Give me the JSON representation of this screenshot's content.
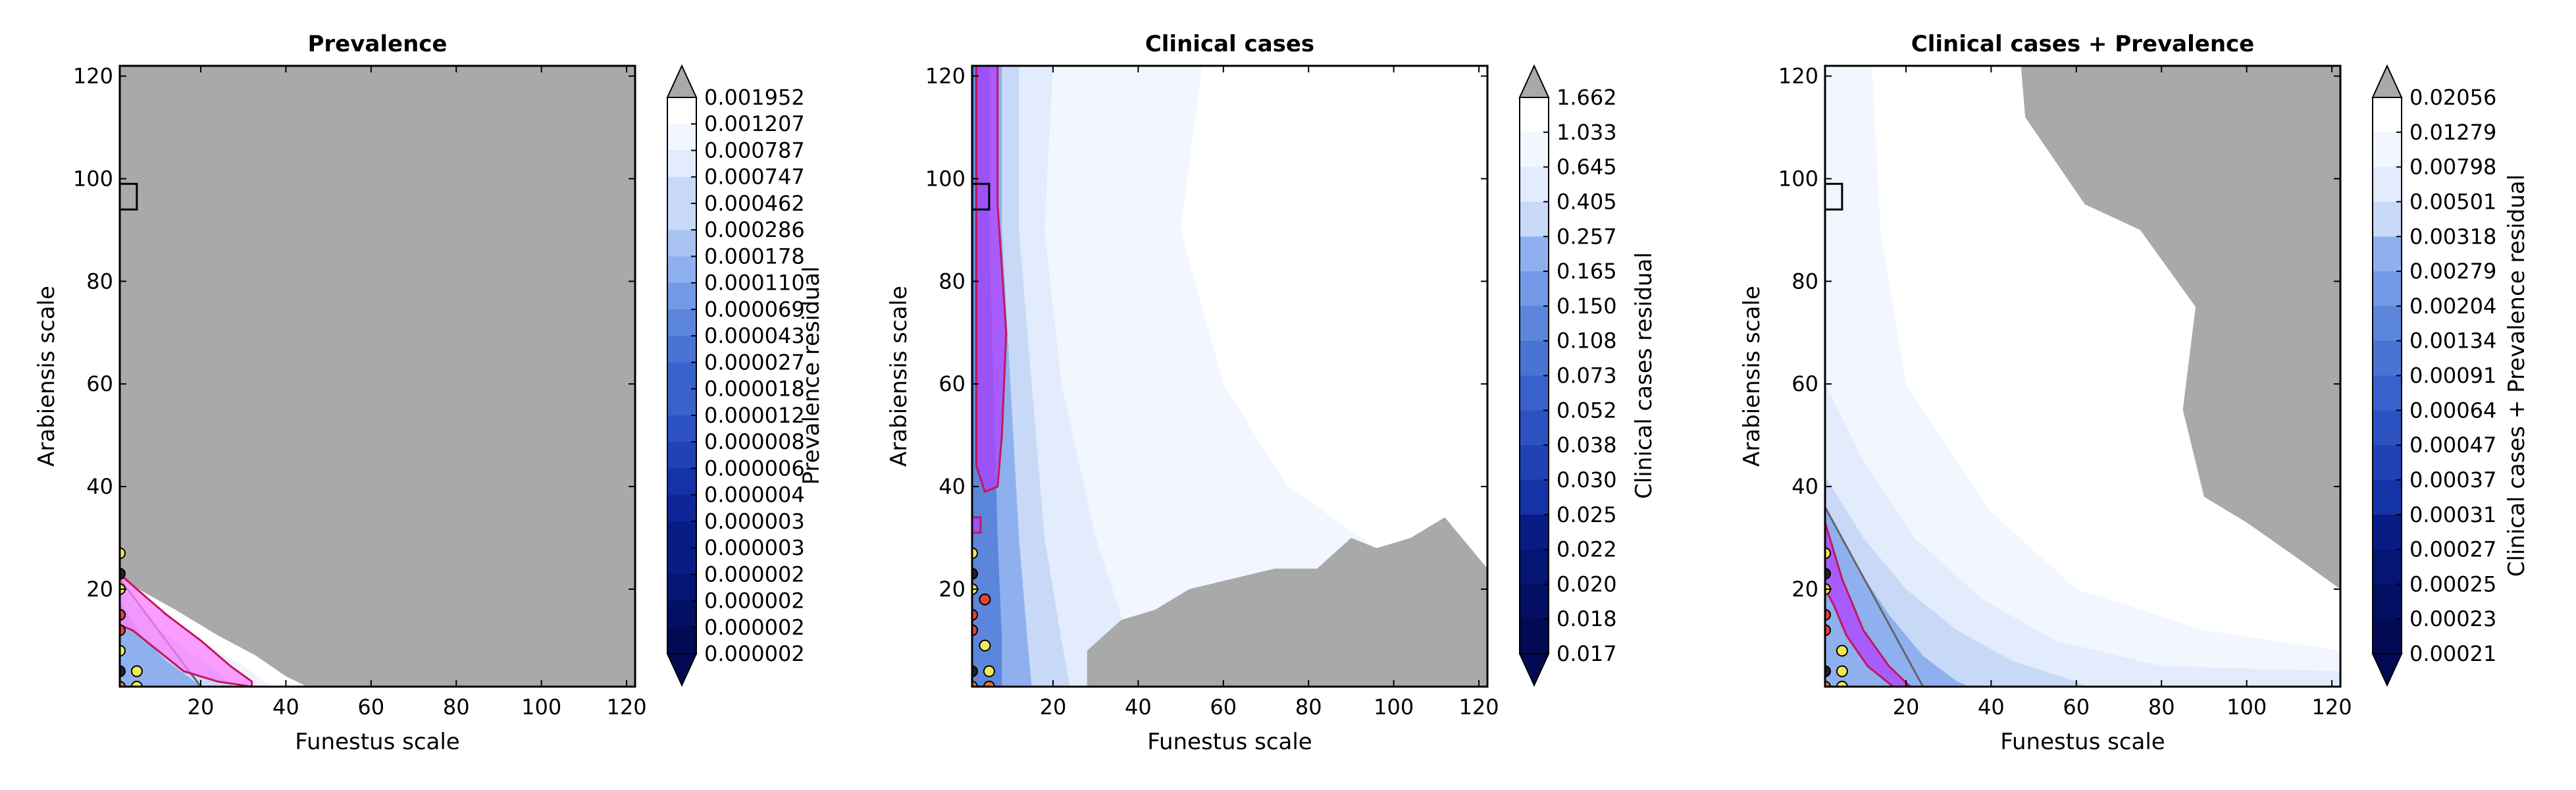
{
  "chart_data": [
    {
      "type": "contour",
      "title": "Prevalence",
      "xlabel": "Funestus scale",
      "ylabel": "Arabiensis scale",
      "xlim": [
        1,
        122
      ],
      "ylim": [
        1,
        122
      ],
      "xticks": [
        "20",
        "40",
        "60",
        "80",
        "100",
        "120"
      ],
      "yticks": [
        "20",
        "40",
        "60",
        "80",
        "100",
        "120"
      ],
      "colorbar": {
        "label": "Prevalence residual",
        "levels": [
          "0.001952",
          "0.001207",
          "0.000787",
          "0.000747",
          "0.000462",
          "0.000286",
          "0.000178",
          "0.000110",
          "0.000069",
          "0.000043",
          "0.000027",
          "0.000018",
          "0.000012",
          "0.000008",
          "0.000006",
          "0.000004",
          "0.000003",
          "0.000003",
          "0.000002",
          "0.000002",
          "0.000002",
          "0.000002"
        ]
      },
      "fill_regions": [
        {
          "color": "#a9a9a9",
          "points": [
            [
              1,
              122
            ],
            [
              122,
              122
            ],
            [
              122,
              1
            ],
            [
              45,
              1
            ],
            [
              40,
              3
            ],
            [
              33,
              7
            ],
            [
              24,
              11
            ],
            [
              14,
              16
            ],
            [
              1,
              22
            ]
          ]
        },
        {
          "color": "#ffffff",
          "points": [
            [
              1,
              22
            ],
            [
              14,
              16
            ],
            [
              24,
              11
            ],
            [
              33,
              7
            ],
            [
              40,
              3
            ],
            [
              45,
              1
            ],
            [
              1,
              1
            ]
          ]
        },
        {
          "color": "#eef3fd",
          "points": [
            [
              1,
              22
            ],
            [
              12,
              15
            ],
            [
              22,
              9
            ],
            [
              30,
              5
            ],
            [
              35,
              2
            ],
            [
              37,
              1
            ],
            [
              1,
              1
            ]
          ]
        },
        {
          "color": "#c8d9f7",
          "points": [
            [
              1,
              21
            ],
            [
              9,
              13
            ],
            [
              17,
              8
            ],
            [
              24,
              4
            ],
            [
              28,
              1
            ],
            [
              1,
              1
            ]
          ]
        },
        {
          "color": "#8fb0ef",
          "points": [
            [
              1,
              18
            ],
            [
              6,
              11
            ],
            [
              12,
              6
            ],
            [
              17,
              3
            ],
            [
              20,
              1
            ],
            [
              1,
              1
            ]
          ]
        }
      ],
      "highlight_regions": [
        {
          "fill": "#ff80ff",
          "edge": "#c2185b",
          "points": [
            [
              1,
              23
            ],
            [
              5,
              20
            ],
            [
              12,
              15
            ],
            [
              20,
              10
            ],
            [
              27,
              5
            ],
            [
              32,
              2
            ],
            [
              32,
              1
            ],
            [
              24,
              2
            ],
            [
              16,
              4
            ],
            [
              10,
              8
            ],
            [
              4,
              12
            ],
            [
              1,
              13
            ]
          ]
        }
      ],
      "triangle": [
        [
          1,
          22
        ],
        [
          1,
          1
        ],
        [
          20,
          1
        ]
      ],
      "box": {
        "x": [
          1,
          5
        ],
        "y": [
          94,
          99
        ]
      },
      "markers": [
        {
          "x": 1,
          "y": 27,
          "color": "#f2e95a"
        },
        {
          "x": 1,
          "y": 23,
          "color": "#222222"
        },
        {
          "x": 1,
          "y": 20,
          "color": "#f2e95a"
        },
        {
          "x": 1,
          "y": 15,
          "color": "#e6443a"
        },
        {
          "x": 1,
          "y": 12,
          "color": "#e6443a"
        },
        {
          "x": 1,
          "y": 8,
          "color": "#f2e95a"
        },
        {
          "x": 1,
          "y": 4,
          "color": "#222222"
        },
        {
          "x": 5,
          "y": 4,
          "color": "#f2e95a"
        },
        {
          "x": 1,
          "y": 1,
          "color": "#e67a2e"
        },
        {
          "x": 5,
          "y": 1,
          "color": "#f2e95a"
        }
      ]
    },
    {
      "type": "contour",
      "title": "Clinical cases",
      "xlabel": "Funestus scale",
      "ylabel": "Arabiensis scale",
      "xlim": [
        1,
        122
      ],
      "ylim": [
        1,
        122
      ],
      "xticks": [
        "20",
        "40",
        "60",
        "80",
        "100",
        "120"
      ],
      "yticks": [
        "20",
        "40",
        "60",
        "80",
        "100",
        "120"
      ],
      "colorbar": {
        "label": "Clinical cases residual",
        "levels": [
          "1.662",
          "1.033",
          "0.645",
          "0.405",
          "0.257",
          "0.165",
          "0.150",
          "0.108",
          "0.073",
          "0.052",
          "0.038",
          "0.030",
          "0.025",
          "0.022",
          "0.020",
          "0.018",
          "0.017"
        ]
      },
      "fill_regions": [
        {
          "color": "#f2f6fe",
          "points": [
            [
              1,
              122
            ],
            [
              55,
              122
            ],
            [
              50,
              90
            ],
            [
              60,
              60
            ],
            [
              75,
              40
            ],
            [
              110,
              20
            ],
            [
              122,
              14
            ],
            [
              122,
              1
            ],
            [
              1,
              1
            ]
          ]
        },
        {
          "color": "#e3ecfc",
          "points": [
            [
              1,
              122
            ],
            [
              20,
              122
            ],
            [
              18,
              90
            ],
            [
              22,
              60
            ],
            [
              30,
              30
            ],
            [
              38,
              10
            ],
            [
              42,
              1
            ],
            [
              1,
              1
            ]
          ]
        },
        {
          "color": "#c8d9f7",
          "points": [
            [
              1,
              122
            ],
            [
              12,
              122
            ],
            [
              12,
              90
            ],
            [
              15,
              60
            ],
            [
              18,
              30
            ],
            [
              22,
              10
            ],
            [
              24,
              1
            ],
            [
              1,
              1
            ]
          ]
        },
        {
          "color": "#8fb0ef",
          "points": [
            [
              1,
              122
            ],
            [
              8,
              122
            ],
            [
              8,
              90
            ],
            [
              10,
              60
            ],
            [
              12,
              30
            ],
            [
              14,
              10
            ],
            [
              15,
              1
            ],
            [
              1,
              1
            ]
          ]
        },
        {
          "color": "#5b86dc",
          "points": [
            [
              1,
              122
            ],
            [
              5,
              122
            ],
            [
              5,
              90
            ],
            [
              6,
              60
            ],
            [
              7,
              30
            ],
            [
              8,
              10
            ],
            [
              8,
              1
            ],
            [
              1,
              1
            ]
          ]
        },
        {
          "color": "#a9a9a9",
          "points": [
            [
              28,
              1
            ],
            [
              28,
              8
            ],
            [
              36,
              14
            ],
            [
              44,
              16
            ],
            [
              52,
              20
            ],
            [
              62,
              22
            ],
            [
              72,
              24
            ],
            [
              82,
              24
            ],
            [
              90,
              30
            ],
            [
              96,
              28
            ],
            [
              104,
              30
            ],
            [
              112,
              34
            ],
            [
              122,
              24
            ],
            [
              122,
              1
            ]
          ]
        }
      ],
      "highlight_regions": [
        {
          "fill": "#b040ff",
          "edge": "#c2185b",
          "points": [
            [
              2,
              122
            ],
            [
              7,
              122
            ],
            [
              7,
              95
            ],
            [
              9,
              70
            ],
            [
              8,
              50
            ],
            [
              7,
              40
            ],
            [
              4,
              39
            ],
            [
              2,
              44
            ]
          ]
        },
        {
          "fill": "#b040ff",
          "edge": "#c2185b",
          "points": [
            [
              1,
              34
            ],
            [
              3,
              34
            ],
            [
              3,
              31
            ],
            [
              1,
              31
            ]
          ]
        }
      ],
      "triangle": [],
      "box": {
        "x": [
          1,
          5
        ],
        "y": [
          94,
          99
        ]
      },
      "markers": [
        {
          "x": 1,
          "y": 27,
          "color": "#f2e95a"
        },
        {
          "x": 1,
          "y": 23,
          "color": "#222222"
        },
        {
          "x": 1,
          "y": 20,
          "color": "#f2e95a"
        },
        {
          "x": 1,
          "y": 15,
          "color": "#e6443a"
        },
        {
          "x": 4,
          "y": 18,
          "color": "#e6443a"
        },
        {
          "x": 1,
          "y": 12,
          "color": "#e6443a"
        },
        {
          "x": 4,
          "y": 9,
          "color": "#f2e95a"
        },
        {
          "x": 1,
          "y": 4,
          "color": "#222222"
        },
        {
          "x": 5,
          "y": 4,
          "color": "#f2e95a"
        },
        {
          "x": 1,
          "y": 1,
          "color": "#e67a2e"
        },
        {
          "x": 5,
          "y": 1,
          "color": "#e67a2e"
        }
      ]
    },
    {
      "type": "contour",
      "title": "Clinical cases + Prevalence",
      "xlabel": "Funestus scale",
      "ylabel": "Arabiensis scale",
      "xlim": [
        1,
        122
      ],
      "ylim": [
        1,
        122
      ],
      "xticks": [
        "20",
        "40",
        "60",
        "80",
        "100",
        "120"
      ],
      "yticks": [
        "20",
        "40",
        "60",
        "80",
        "100",
        "120"
      ],
      "colorbar": {
        "label": "Clinical cases + Prevalence residual",
        "levels": [
          "0.02056",
          "0.01279",
          "0.00798",
          "0.00501",
          "0.00318",
          "0.00279",
          "0.00204",
          "0.00134",
          "0.00091",
          "0.00064",
          "0.00047",
          "0.00037",
          "0.00031",
          "0.00027",
          "0.00025",
          "0.00023",
          "0.00021"
        ]
      },
      "fill_regions": [
        {
          "color": "#f2f6fe",
          "points": [
            [
              1,
              122
            ],
            [
              12,
              122
            ],
            [
              14,
              90
            ],
            [
              20,
              60
            ],
            [
              40,
              35
            ],
            [
              60,
              20
            ],
            [
              90,
              12
            ],
            [
              122,
              8
            ],
            [
              122,
              1
            ],
            [
              1,
              1
            ]
          ]
        },
        {
          "color": "#e3ecfc",
          "points": [
            [
              1,
              60
            ],
            [
              10,
              45
            ],
            [
              22,
              30
            ],
            [
              38,
              18
            ],
            [
              55,
              10
            ],
            [
              80,
              5
            ],
            [
              122,
              4
            ],
            [
              122,
              1
            ],
            [
              1,
              1
            ]
          ]
        },
        {
          "color": "#c8d9f7",
          "points": [
            [
              1,
              42
            ],
            [
              10,
              30
            ],
            [
              20,
              20
            ],
            [
              32,
              12
            ],
            [
              45,
              6
            ],
            [
              60,
              2
            ],
            [
              62,
              1
            ],
            [
              1,
              1
            ]
          ]
        },
        {
          "color": "#8fb0ef",
          "points": [
            [
              1,
              36
            ],
            [
              8,
              25
            ],
            [
              16,
              15
            ],
            [
              24,
              7
            ],
            [
              32,
              2
            ],
            [
              35,
              1
            ],
            [
              1,
              1
            ]
          ]
        },
        {
          "color": "#a9a9a9",
          "points": [
            [
              47,
              122
            ],
            [
              122,
              122
            ],
            [
              122,
              20
            ],
            [
              112,
              26
            ],
            [
              100,
              33
            ],
            [
              90,
              38
            ],
            [
              85,
              55
            ],
            [
              88,
              75
            ],
            [
              75,
              90
            ],
            [
              62,
              95
            ],
            [
              48,
              112
            ]
          ]
        }
      ],
      "highlight_regions": [
        {
          "fill": "#b040ff",
          "edge": "#c2185b",
          "points": [
            [
              1,
              33
            ],
            [
              5,
              22
            ],
            [
              10,
              12
            ],
            [
              16,
              5
            ],
            [
              21,
              1
            ],
            [
              17,
              1
            ],
            [
              11,
              5
            ],
            [
              6,
              11
            ],
            [
              3,
              17
            ],
            [
              1,
              20
            ]
          ]
        }
      ],
      "triangle": [
        [
          1,
          36
        ],
        [
          1,
          1
        ],
        [
          24,
          1
        ]
      ],
      "box": {
        "x": [
          1,
          5
        ],
        "y": [
          94,
          99
        ]
      },
      "markers": [
        {
          "x": 1,
          "y": 27,
          "color": "#f2e95a"
        },
        {
          "x": 1,
          "y": 23,
          "color": "#222222"
        },
        {
          "x": 1,
          "y": 20,
          "color": "#f2e95a"
        },
        {
          "x": 1,
          "y": 15,
          "color": "#e6443a"
        },
        {
          "x": 1,
          "y": 12,
          "color": "#e6443a"
        },
        {
          "x": 5,
          "y": 8,
          "color": "#f2e95a"
        },
        {
          "x": 1,
          "y": 4,
          "color": "#222222"
        },
        {
          "x": 5,
          "y": 4,
          "color": "#f2e95a"
        },
        {
          "x": 1,
          "y": 1,
          "color": "#e67a2e"
        },
        {
          "x": 5,
          "y": 1,
          "color": "#f2e95a"
        }
      ]
    }
  ]
}
